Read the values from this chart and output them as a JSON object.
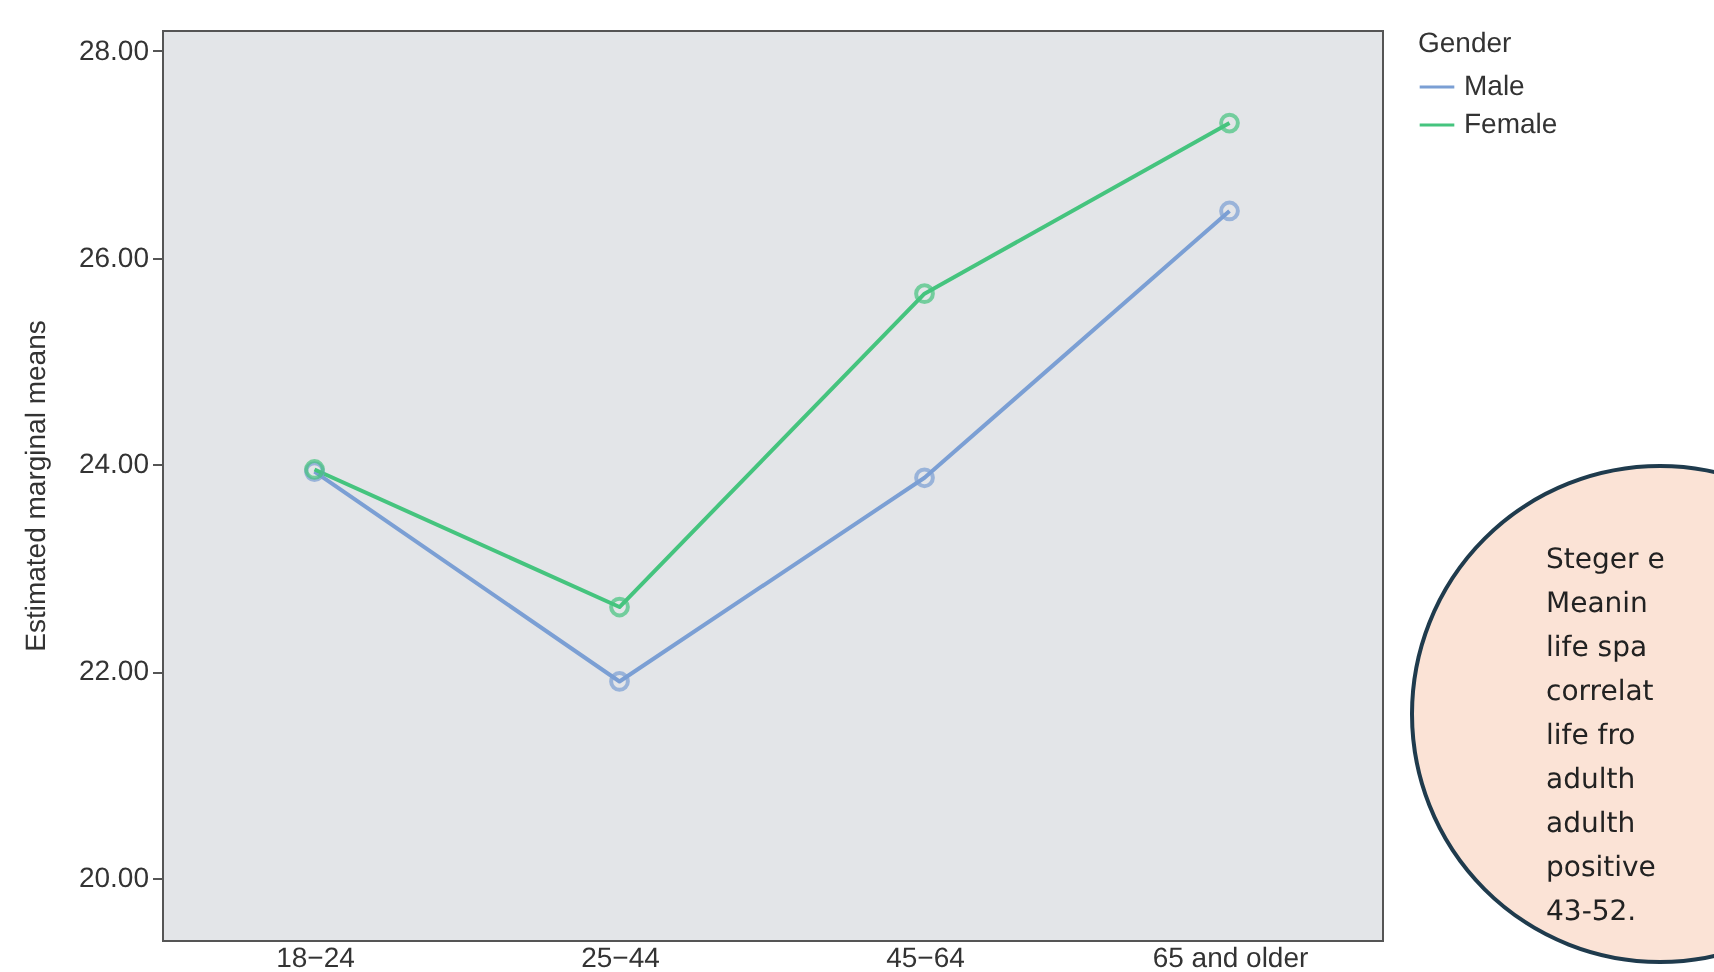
{
  "chart_data": {
    "type": "line",
    "ylabel": "Estimated marginal means",
    "legend_title": "Gender",
    "categories": [
      "18−24",
      "25−44",
      "45−64",
      "65 and older"
    ],
    "series": [
      {
        "name": "Male",
        "color": "#7b9fd4",
        "values": [
          23.93,
          21.9,
          23.87,
          26.45
        ]
      },
      {
        "name": "Female",
        "color": "#45c47e",
        "values": [
          23.95,
          22.62,
          25.65,
          27.3
        ]
      }
    ],
    "ylim": [
      19.4,
      28.2
    ],
    "yticks": [
      {
        "value": 20,
        "label": "20.00"
      },
      {
        "value": 22,
        "label": "22.00"
      },
      {
        "value": 24,
        "label": "24.00"
      },
      {
        "value": 26,
        "label": "26.00"
      },
      {
        "value": 28,
        "label": "28.00"
      }
    ],
    "grid": false,
    "legend": "top right",
    "marker": "circle",
    "line_style": "solid",
    "annotations": [
      "Steger e",
      "Meanin",
      "life spa",
      "correlat",
      "life fro",
      "adulth",
      "adulth",
      "positive",
      "43-52."
    ]
  }
}
